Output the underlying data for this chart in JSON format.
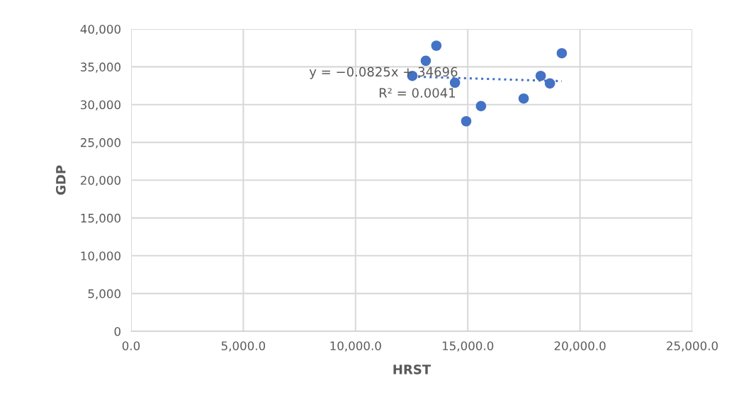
{
  "chart_data": {
    "type": "scatter",
    "xlabel": "HRST",
    "ylabel": "GDP",
    "xlim": [
      0,
      25000
    ],
    "xticks": [
      {
        "value": 0,
        "label": "0.0"
      },
      {
        "value": 5000,
        "label": "5,000.0"
      },
      {
        "value": 10000,
        "label": "10,000.0"
      },
      {
        "value": 15000,
        "label": "15,000.0"
      },
      {
        "value": 20000,
        "label": "20,000.0"
      },
      {
        "value": 25000,
        "label": "25,000.0"
      }
    ],
    "ylim": [
      0,
      40000
    ],
    "yticks": [
      {
        "value": 0,
        "label": "0"
      },
      {
        "value": 5000,
        "label": "5,000"
      },
      {
        "value": 10000,
        "label": "10,000"
      },
      {
        "value": 15000,
        "label": "15,000"
      },
      {
        "value": 20000,
        "label": "20,000"
      },
      {
        "value": 25000,
        "label": "25,000"
      },
      {
        "value": 30000,
        "label": "30,000"
      },
      {
        "value": 35000,
        "label": "35,000"
      },
      {
        "value": 40000,
        "label": "40,000"
      }
    ],
    "grid": true,
    "legend": false,
    "series": [
      {
        "color": "#4472c4",
        "marker": "circle",
        "x": [
          12530,
          13130,
          13600,
          14430,
          14930,
          15590,
          17490,
          18250,
          18660,
          19190
        ],
        "values": [
          33800,
          35800,
          37800,
          32900,
          27800,
          29800,
          30800,
          33800,
          32800,
          36800
        ]
      },
      {
        "type": "line",
        "color": "#4472c4",
        "line_style": "dotted",
        "marker": "none",
        "x": [
          12530,
          19190
        ],
        "values": [
          33700,
          33100
        ]
      }
    ],
    "annotations": [
      "y = −0.0825x + 34696",
      "R² = 0.0041"
    ]
  }
}
